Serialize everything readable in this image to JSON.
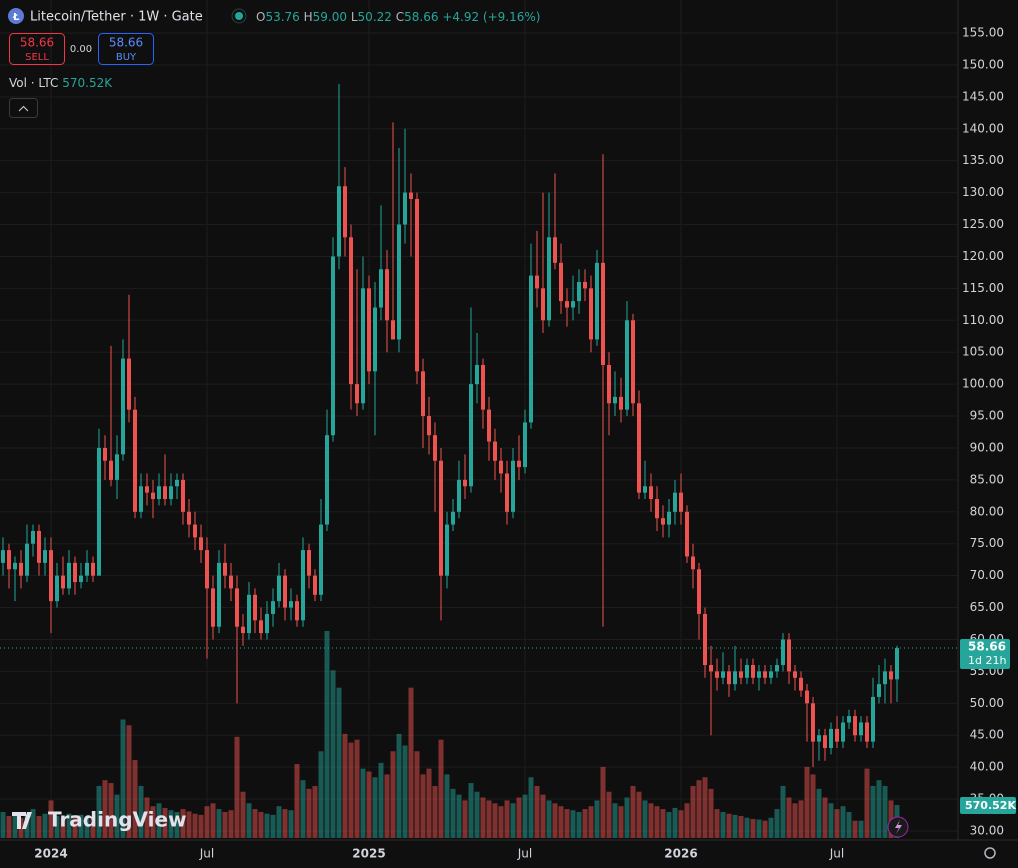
{
  "chart_data": {
    "type": "candlestick",
    "title": "Litecoin/Tether · 1W · Gate",
    "ohlc_header": [
      {
        "key": "O",
        "text": "53.76"
      },
      {
        "key": "H",
        "text": "59.00"
      },
      {
        "key": "L",
        "text": "50.22"
      },
      {
        "key": "C",
        "text": "58.66"
      }
    ],
    "change": "+4.92",
    "change_pct": "(+9.16%)",
    "sell_price": "58.66",
    "sell_label": "SELL",
    "spread": "0.00",
    "buy_price": "58.66",
    "buy_label": "BUY",
    "volume_title": "Vol · LTC",
    "volume_text": "570.52K",
    "last_price_text": "58.66",
    "countdown": "1d 21h",
    "brand": "TradingView",
    "up_color": "#26a69a",
    "down_color": "#ef5350",
    "categories": [
      null,
      null,
      null,
      null,
      null,
      null,
      null,
      null,
      "2024",
      null,
      null,
      null,
      null,
      null,
      null,
      null,
      null,
      null,
      null,
      null,
      null,
      null,
      null,
      null,
      null,
      null,
      null,
      null,
      null,
      null,
      null,
      null,
      null,
      null,
      "Jul",
      null,
      null,
      null,
      null,
      null,
      null,
      null,
      null,
      null,
      null,
      null,
      null,
      null,
      null,
      null,
      null,
      null,
      null,
      null,
      null,
      null,
      null,
      null,
      null,
      null,
      null,
      "2025",
      null,
      null,
      null,
      null,
      null,
      null,
      null,
      null,
      null,
      null,
      null,
      null,
      null,
      null,
      null,
      null,
      null,
      null,
      null,
      null,
      null,
      null,
      null,
      null,
      null,
      "Jul",
      null,
      null,
      null,
      null,
      null,
      null,
      null,
      null,
      null,
      null,
      null,
      null,
      null,
      null,
      null,
      null,
      null,
      null,
      null,
      null,
      null,
      null,
      null,
      null,
      null,
      "2026",
      null,
      null,
      null,
      null,
      null,
      null,
      null,
      null,
      null,
      null,
      null,
      null,
      null,
      null,
      null,
      null,
      null,
      null,
      null,
      null,
      null,
      null,
      null,
      null,
      null,
      "Jul",
      null,
      null,
      null,
      null,
      null,
      null,
      null,
      null,
      null,
      null
    ],
    "ohlc": [
      [
        72,
        76,
        70,
        74
      ],
      [
        74,
        75,
        68,
        71
      ],
      [
        71,
        73,
        66,
        72
      ],
      [
        72,
        74,
        68,
        70
      ],
      [
        70,
        78,
        69,
        75
      ],
      [
        75,
        78,
        73,
        77
      ],
      [
        77,
        78,
        70,
        72
      ],
      [
        72,
        76,
        70,
        74
      ],
      [
        74,
        76,
        61,
        66
      ],
      [
        66,
        72,
        65,
        70
      ],
      [
        70,
        73,
        67,
        68
      ],
      [
        68,
        74,
        67,
        72
      ],
      [
        72,
        73,
        67,
        69
      ],
      [
        69,
        72,
        68,
        70
      ],
      [
        70,
        74,
        69,
        72
      ],
      [
        72,
        73,
        69,
        70
      ],
      [
        70,
        93,
        70,
        90
      ],
      [
        90,
        92,
        85,
        88
      ],
      [
        88,
        106,
        84,
        85
      ],
      [
        85,
        92,
        82,
        89
      ],
      [
        89,
        107,
        88,
        104
      ],
      [
        104,
        114,
        94,
        96
      ],
      [
        96,
        98,
        79,
        80
      ],
      [
        80,
        86,
        79,
        84
      ],
      [
        84,
        86,
        81,
        83
      ],
      [
        83,
        85,
        79,
        82
      ],
      [
        82,
        86,
        81,
        84
      ],
      [
        84,
        89,
        81,
        82
      ],
      [
        82,
        86,
        81,
        84
      ],
      [
        84,
        86,
        82,
        85
      ],
      [
        85,
        86,
        78,
        80
      ],
      [
        80,
        82,
        76,
        78
      ],
      [
        78,
        80,
        74,
        76
      ],
      [
        76,
        78,
        72,
        74
      ],
      [
        74,
        76,
        57,
        68
      ],
      [
        68,
        70,
        60,
        62
      ],
      [
        62,
        74,
        61,
        72
      ],
      [
        72,
        75,
        68,
        70
      ],
      [
        70,
        72,
        66,
        68
      ],
      [
        68,
        70,
        50,
        62
      ],
      [
        62,
        64,
        59,
        61
      ],
      [
        61,
        69,
        60,
        67
      ],
      [
        67,
        68,
        61,
        63
      ],
      [
        63,
        65,
        60,
        61
      ],
      [
        61,
        66,
        60,
        64
      ],
      [
        64,
        68,
        62,
        66
      ],
      [
        66,
        72,
        65,
        70
      ],
      [
        70,
        71,
        63,
        65
      ],
      [
        65,
        68,
        63,
        66
      ],
      [
        66,
        67,
        62,
        63
      ],
      [
        63,
        76,
        62,
        74
      ],
      [
        74,
        75,
        68,
        70
      ],
      [
        70,
        71,
        66,
        67
      ],
      [
        67,
        82,
        66,
        78
      ],
      [
        78,
        96,
        77,
        92
      ],
      [
        92,
        123,
        91,
        120
      ],
      [
        120,
        147,
        118,
        131
      ],
      [
        131,
        134,
        120,
        123
      ],
      [
        123,
        125,
        96,
        100
      ],
      [
        100,
        118,
        95,
        97
      ],
      [
        97,
        120,
        96,
        115
      ],
      [
        115,
        117,
        100,
        102
      ],
      [
        102,
        116,
        92,
        112
      ],
      [
        112,
        128,
        110,
        118
      ],
      [
        118,
        121,
        105,
        110
      ],
      [
        110,
        141,
        107,
        107
      ],
      [
        107,
        137,
        105,
        125
      ],
      [
        125,
        140,
        122,
        130
      ],
      [
        130,
        133,
        120,
        129
      ],
      [
        129,
        130,
        100,
        102
      ],
      [
        102,
        104,
        90,
        95
      ],
      [
        95,
        98,
        89,
        92
      ],
      [
        92,
        94,
        80,
        88
      ],
      [
        88,
        90,
        63,
        70
      ],
      [
        70,
        80,
        68,
        78
      ],
      [
        78,
        82,
        77,
        80
      ],
      [
        80,
        88,
        79,
        85
      ],
      [
        85,
        89,
        82,
        84
      ],
      [
        84,
        112,
        83,
        100
      ],
      [
        100,
        108,
        97,
        103
      ],
      [
        103,
        104,
        93,
        96
      ],
      [
        96,
        98,
        88,
        91
      ],
      [
        91,
        93,
        85,
        88
      ],
      [
        88,
        90,
        83,
        86
      ],
      [
        86,
        88,
        78,
        80
      ],
      [
        80,
        90,
        79,
        88
      ],
      [
        88,
        92,
        85,
        87
      ],
      [
        87,
        96,
        86,
        94
      ],
      [
        94,
        122,
        93,
        117
      ],
      [
        117,
        124,
        112,
        115
      ],
      [
        115,
        130,
        108,
        110
      ],
      [
        110,
        130,
        109,
        123
      ],
      [
        123,
        133,
        118,
        119
      ],
      [
        119,
        122,
        111,
        113
      ],
      [
        113,
        115,
        109,
        112
      ],
      [
        112,
        117,
        110,
        113
      ],
      [
        113,
        118,
        111,
        116
      ],
      [
        116,
        118,
        113,
        115
      ],
      [
        115,
        117,
        105,
        107
      ],
      [
        107,
        121,
        106,
        119
      ],
      [
        119,
        136,
        62,
        103
      ],
      [
        103,
        105,
        92,
        97
      ],
      [
        97,
        102,
        95,
        98
      ],
      [
        98,
        101,
        94,
        96
      ],
      [
        96,
        113,
        95,
        110
      ],
      [
        110,
        111,
        95,
        97
      ],
      [
        97,
        99,
        82,
        83
      ],
      [
        83,
        88,
        82,
        84
      ],
      [
        84,
        86,
        80,
        82
      ],
      [
        82,
        84,
        77,
        79
      ],
      [
        79,
        81,
        76,
        78
      ],
      [
        78,
        82,
        76,
        80
      ],
      [
        80,
        85,
        78,
        83
      ],
      [
        83,
        86,
        78,
        80
      ],
      [
        80,
        81,
        72,
        73
      ],
      [
        73,
        75,
        68,
        71
      ],
      [
        71,
        72,
        60,
        64
      ],
      [
        64,
        65,
        54,
        56
      ],
      [
        56,
        59,
        45,
        55
      ],
      [
        55,
        57,
        52,
        54
      ],
      [
        54,
        58,
        53,
        55
      ],
      [
        55,
        56,
        51,
        53
      ],
      [
        53,
        59,
        52,
        55
      ],
      [
        55,
        57,
        53,
        54
      ],
      [
        54,
        57,
        53,
        56
      ],
      [
        56,
        57,
        53,
        54
      ],
      [
        54,
        56,
        52,
        55
      ],
      [
        55,
        56,
        53,
        54
      ],
      [
        54,
        56,
        53,
        55
      ],
      [
        55,
        57,
        54,
        56
      ],
      [
        56,
        61,
        55,
        60
      ],
      [
        60,
        61,
        53,
        55
      ],
      [
        55,
        56,
        52,
        54
      ],
      [
        54,
        55,
        51,
        52
      ],
      [
        52,
        53,
        44,
        50
      ],
      [
        50,
        51,
        40,
        44
      ],
      [
        44,
        46,
        41,
        45
      ],
      [
        45,
        46,
        41,
        43
      ],
      [
        43,
        47,
        42,
        46
      ],
      [
        46,
        48,
        43,
        44
      ],
      [
        44,
        48,
        43,
        47
      ],
      [
        47,
        49,
        46,
        48
      ],
      [
        48,
        49,
        44,
        45
      ],
      [
        45,
        48,
        44,
        47
      ],
      [
        47,
        48,
        43,
        44
      ],
      [
        44,
        54,
        43,
        51
      ],
      [
        51,
        56,
        50,
        53
      ],
      [
        53,
        57,
        50,
        55
      ],
      [
        55,
        56,
        50,
        53.74
      ],
      [
        53.76,
        59,
        50.22,
        58.66
      ]
    ],
    "volume": [
      450,
      380,
      420,
      350,
      400,
      500,
      380,
      420,
      650,
      380,
      350,
      420,
      380,
      400,
      360,
      380,
      900,
      1000,
      950,
      750,
      2050,
      1950,
      1350,
      900,
      700,
      550,
      600,
      520,
      480,
      450,
      500,
      460,
      420,
      400,
      550,
      600,
      500,
      450,
      480,
      1750,
      800,
      600,
      500,
      450,
      420,
      400,
      550,
      500,
      480,
      1280,
      1000,
      850,
      900,
      1500,
      3580,
      2900,
      2600,
      1800,
      1650,
      1700,
      1200,
      1150,
      1050,
      1300,
      1100,
      1500,
      1800,
      1600,
      2600,
      1500,
      1100,
      1200,
      900,
      1700,
      1100,
      850,
      750,
      650,
      950,
      800,
      700,
      650,
      600,
      550,
      650,
      600,
      700,
      750,
      1050,
      900,
      750,
      650,
      600,
      550,
      500,
      480,
      450,
      500,
      550,
      650,
      1230,
      800,
      600,
      550,
      700,
      900,
      800,
      650,
      600,
      550,
      500,
      450,
      520,
      480,
      600,
      900,
      1000,
      1050,
      850,
      500,
      450,
      420,
      400,
      380,
      350,
      330,
      320,
      300,
      350,
      500,
      900,
      700,
      600,
      650,
      1230,
      1100,
      850,
      700,
      600,
      500,
      550,
      450,
      300,
      300,
      1200,
      900,
      1000,
      900,
      650,
      570.52
    ],
    "last_price": 58.66,
    "ylim": [
      30,
      155
    ],
    "yticks": [
      {
        "value": 30,
        "label": "30.00"
      },
      {
        "value": 35,
        "label": "35.00"
      },
      {
        "value": 40,
        "label": "40.00"
      },
      {
        "value": 45,
        "label": "45.00"
      },
      {
        "value": 50,
        "label": "50.00"
      },
      {
        "value": 55,
        "label": "55.00"
      },
      {
        "value": 60,
        "label": "60.00"
      },
      {
        "value": 65,
        "label": "65.00"
      },
      {
        "value": 70,
        "label": "70.00"
      },
      {
        "value": 75,
        "label": "75.00"
      },
      {
        "value": 80,
        "label": "80.00"
      },
      {
        "value": 85,
        "label": "85.00"
      },
      {
        "value": 90,
        "label": "90.00"
      },
      {
        "value": 95,
        "label": "95.00"
      },
      {
        "value": 100,
        "label": "100.00"
      },
      {
        "value": 105,
        "label": "105.00"
      },
      {
        "value": 110,
        "label": "110.00"
      },
      {
        "value": 115,
        "label": "115.00"
      },
      {
        "value": 120,
        "label": "120.00"
      },
      {
        "value": 125,
        "label": "125.00"
      },
      {
        "value": 130,
        "label": "130.00"
      },
      {
        "value": 135,
        "label": "135.00"
      },
      {
        "value": 140,
        "label": "140.00"
      },
      {
        "value": 145,
        "label": "145.00"
      },
      {
        "value": 150,
        "label": "150.00"
      },
      {
        "value": 155,
        "label": "155.00"
      }
    ],
    "grid": true
  }
}
